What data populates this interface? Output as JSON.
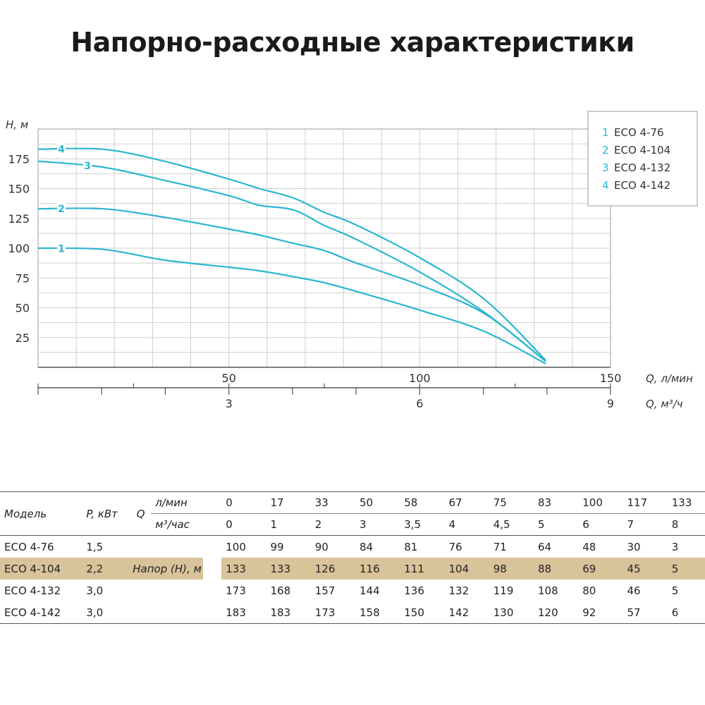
{
  "title": "Напорно-расходные характеристики",
  "chart_data": {
    "type": "line",
    "title": "Напорно-расходные характеристики",
    "ylabel": "H, м",
    "xlabel": "Q, л/мин",
    "x2label": "Q, м³/ч",
    "ylim": [
      0,
      200
    ],
    "xlim": [
      0,
      150
    ],
    "yticks": [
      "25",
      "50",
      "75",
      "100",
      "125",
      "150",
      "175"
    ],
    "xticks": [
      "50",
      "100",
      "150"
    ],
    "x2ticks": [
      "3",
      "6",
      "9"
    ],
    "grid": true,
    "legend_position": "top-right",
    "x": [
      0,
      17,
      33,
      50,
      58,
      67,
      75,
      83,
      100,
      117,
      133
    ],
    "series": [
      {
        "name": "ECO 4-76",
        "label": "1",
        "values": [
          100,
          99,
          90,
          84,
          81,
          76,
          71,
          64,
          48,
          30,
          3
        ]
      },
      {
        "name": "ECO 4-104",
        "label": "2",
        "values": [
          133,
          133,
          126,
          116,
          111,
          104,
          98,
          88,
          69,
          45,
          5
        ]
      },
      {
        "name": "ECO 4-132",
        "label": "3",
        "values": [
          173,
          168,
          157,
          144,
          136,
          132,
          119,
          108,
          80,
          46,
          5
        ]
      },
      {
        "name": "ECO 4-142",
        "label": "4",
        "values": [
          183,
          183,
          173,
          158,
          150,
          142,
          130,
          120,
          92,
          57,
          6
        ]
      }
    ],
    "line_color": "#29b6d0"
  },
  "legend": [
    {
      "num": "1",
      "name": "ECO 4-76"
    },
    {
      "num": "2",
      "name": "ECO 4-104"
    },
    {
      "num": "3",
      "name": "ECO 4-132"
    },
    {
      "num": "4",
      "name": "ECO 4-142"
    }
  ],
  "table": {
    "col_model": "Модель",
    "col_power": "P, кВт",
    "col_q": "Q",
    "unit_lmin": "л/мин",
    "unit_m3h": "м³/час",
    "head_label": "Напор (H), м",
    "lmin": [
      "0",
      "17",
      "33",
      "50",
      "58",
      "67",
      "75",
      "83",
      "100",
      "117",
      "133"
    ],
    "m3h": [
      "0",
      "1",
      "2",
      "3",
      "3,5",
      "4",
      "4,5",
      "5",
      "6",
      "7",
      "8"
    ],
    "rows": [
      {
        "model": "ECO 4-76",
        "power": "1,5",
        "values": [
          "100",
          "99",
          "90",
          "84",
          "81",
          "76",
          "71",
          "64",
          "48",
          "30",
          "3"
        ]
      },
      {
        "model": "ECO 4-104",
        "power": "2,2",
        "values": [
          "133",
          "133",
          "126",
          "116",
          "111",
          "104",
          "98",
          "88",
          "69",
          "45",
          "5"
        ]
      },
      {
        "model": "ECO 4-132",
        "power": "3,0",
        "values": [
          "173",
          "168",
          "157",
          "144",
          "136",
          "132",
          "119",
          "108",
          "80",
          "46",
          "5"
        ]
      },
      {
        "model": "ECO 4-142",
        "power": "3,0",
        "values": [
          "183",
          "183",
          "173",
          "158",
          "150",
          "142",
          "130",
          "120",
          "92",
          "57",
          "6"
        ]
      }
    ],
    "highlight_color": "#d9c39a"
  }
}
